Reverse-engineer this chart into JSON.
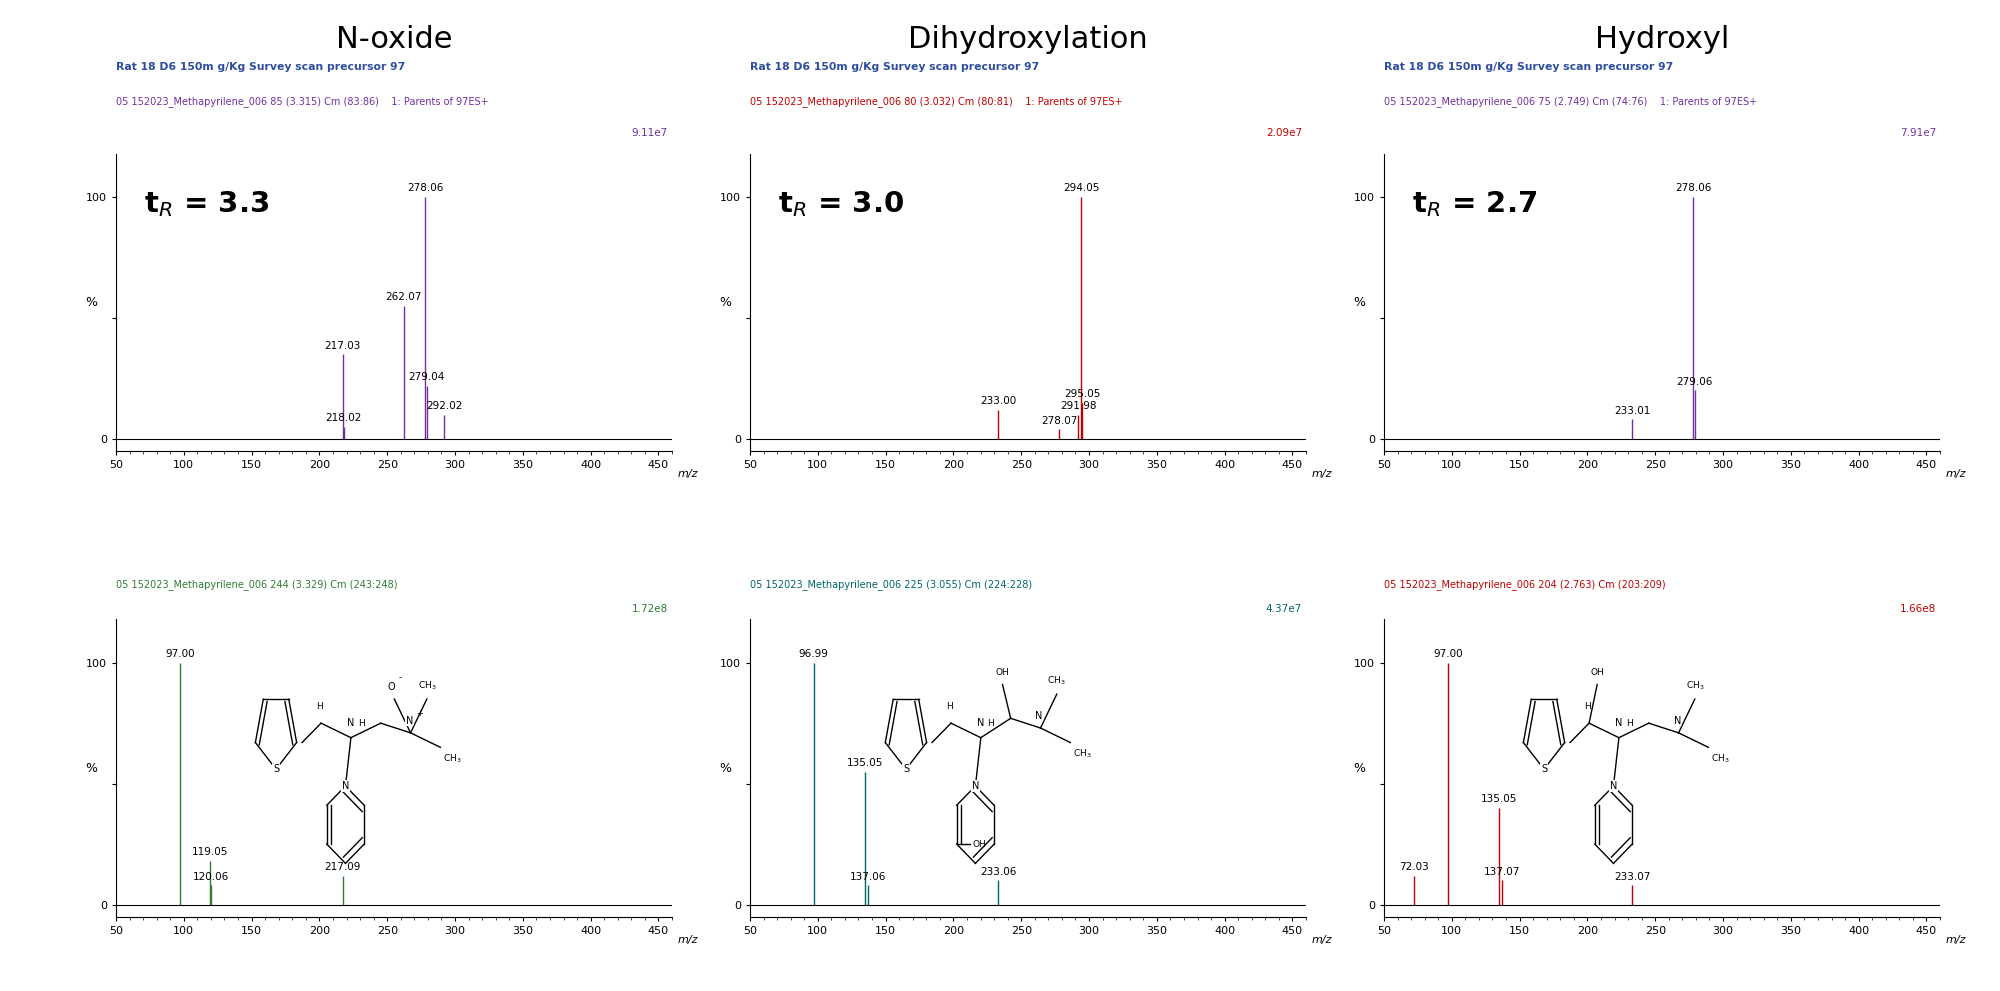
{
  "columns": [
    "N-oxide",
    "Dihydroxylation",
    "Hydroxyl"
  ],
  "title_fontsize": 22,
  "panels": [
    {
      "id": "top_left",
      "subtitle1": "Rat 18 D6 150m g/Kg Survey scan precursor 97",
      "subtitle2": "05 152023_Methapyrilene_006 85 (3.315) Cm (83:86)    1: Parents of 97ES+",
      "subtitle1_color": "#2E4DA0",
      "subtitle2_color": "#7030A0",
      "intensity_label": "9.11e7",
      "tr_value": "3.3",
      "color": "#7030A0",
      "peaks": [
        {
          "mz": 217.03,
          "intensity": 35,
          "label": "217.03"
        },
        {
          "mz": 218.02,
          "intensity": 5,
          "label": "218.02"
        },
        {
          "mz": 262.07,
          "intensity": 55,
          "label": "262.07"
        },
        {
          "mz": 278.06,
          "intensity": 100,
          "label": "278.06"
        },
        {
          "mz": 279.04,
          "intensity": 22,
          "label": "279.04"
        },
        {
          "mz": 292.02,
          "intensity": 10,
          "label": "292.02"
        }
      ],
      "xlim": [
        50,
        460
      ],
      "xticks": [
        50,
        100,
        150,
        200,
        250,
        300,
        350,
        400,
        450
      ]
    },
    {
      "id": "top_mid",
      "subtitle1": "Rat 18 D6 150m g/Kg Survey scan precursor 97",
      "subtitle2": "05 152023_Methapyrilene_006 80 (3.032) Cm (80:81)    1: Parents of 97ES+",
      "subtitle1_color": "#2E4DA0",
      "subtitle2_color": "#C00000",
      "intensity_label": "2.09e7",
      "tr_value": "3.0",
      "color": "#C00000",
      "peaks": [
        {
          "mz": 233.0,
          "intensity": 12,
          "label": "233.00"
        },
        {
          "mz": 278.07,
          "intensity": 4,
          "label": "278.07"
        },
        {
          "mz": 291.98,
          "intensity": 10,
          "label": "291.98"
        },
        {
          "mz": 294.05,
          "intensity": 100,
          "label": "294.05"
        },
        {
          "mz": 295.05,
          "intensity": 15,
          "label": "295.05"
        }
      ],
      "xlim": [
        50,
        460
      ],
      "xticks": [
        50,
        100,
        150,
        200,
        250,
        300,
        350,
        400,
        450
      ]
    },
    {
      "id": "top_right",
      "subtitle1": "Rat 18 D6 150m g/Kg Survey scan precursor 97",
      "subtitle2": "05 152023_Methapyrilene_006 75 (2.749) Cm (74:76)    1: Parents of 97ES+",
      "subtitle1_color": "#2E4DA0",
      "subtitle2_color": "#7030A0",
      "intensity_label": "7.91e7",
      "tr_value": "2.7",
      "color": "#7030A0",
      "peaks": [
        {
          "mz": 233.01,
          "intensity": 8,
          "label": "233.01"
        },
        {
          "mz": 278.06,
          "intensity": 100,
          "label": "278.06"
        },
        {
          "mz": 279.06,
          "intensity": 20,
          "label": "279.06"
        }
      ],
      "xlim": [
        50,
        460
      ],
      "xticks": [
        50,
        100,
        150,
        200,
        250,
        300,
        350,
        400,
        450
      ]
    },
    {
      "id": "bot_left",
      "subtitle2": "05 152023_Methapyrilene_006 244 (3.329) Cm (243:248)",
      "subtitle2_color": "#2E7D32",
      "intensity_label": "1.72e8",
      "color": "#2E7D32",
      "peaks": [
        {
          "mz": 97.0,
          "intensity": 100,
          "label": "97.00"
        },
        {
          "mz": 119.05,
          "intensity": 18,
          "label": "119.05"
        },
        {
          "mz": 120.06,
          "intensity": 8,
          "label": "120.06"
        },
        {
          "mz": 217.09,
          "intensity": 12,
          "label": "217.09"
        }
      ],
      "xlim": [
        50,
        460
      ],
      "xticks": [
        50,
        100,
        150,
        200,
        250,
        300,
        350,
        400,
        450
      ]
    },
    {
      "id": "bot_mid",
      "subtitle2": "05 152023_Methapyrilene_006 225 (3.055) Cm (224:228)",
      "subtitle2_color": "#006666",
      "intensity_label": "4.37e7",
      "color": "#006666",
      "peaks": [
        {
          "mz": 96.99,
          "intensity": 100,
          "label": "96.99"
        },
        {
          "mz": 135.05,
          "intensity": 55,
          "label": "135.05"
        },
        {
          "mz": 137.06,
          "intensity": 8,
          "label": "137.06"
        },
        {
          "mz": 233.06,
          "intensity": 10,
          "label": "233.06"
        }
      ],
      "xlim": [
        50,
        460
      ],
      "xticks": [
        50,
        100,
        150,
        200,
        250,
        300,
        350,
        400,
        450
      ]
    },
    {
      "id": "bot_right",
      "subtitle2": "05 152023_Methapyrilene_006 204 (2.763) Cm (203:209)",
      "subtitle2_color": "#C00000",
      "intensity_label": "1.66e8",
      "color": "#C00000",
      "peaks": [
        {
          "mz": 72.03,
          "intensity": 12,
          "label": "72.03"
        },
        {
          "mz": 97.0,
          "intensity": 100,
          "label": "97.00"
        },
        {
          "mz": 135.05,
          "intensity": 40,
          "label": "135.05"
        },
        {
          "mz": 137.07,
          "intensity": 10,
          "label": "137.07"
        },
        {
          "mz": 233.07,
          "intensity": 8,
          "label": "233.07"
        }
      ],
      "xlim": [
        50,
        460
      ],
      "xticks": [
        50,
        100,
        150,
        200,
        250,
        300,
        350,
        400,
        450
      ]
    }
  ]
}
